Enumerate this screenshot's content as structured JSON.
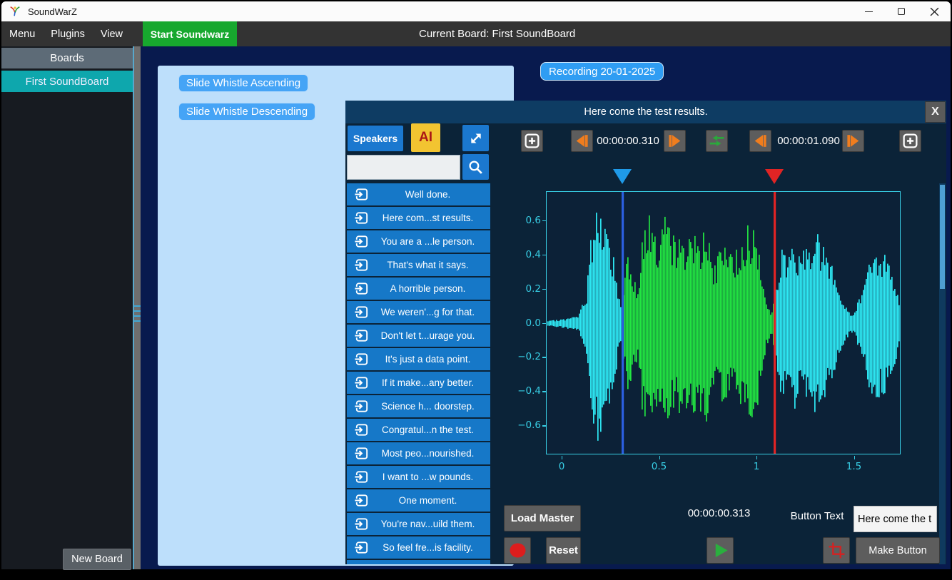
{
  "window": {
    "title": "SoundWarZ"
  },
  "menu_bar": {
    "items": [
      "Menu",
      "Plugins",
      "View"
    ],
    "start_button_label": "Start Soundwarz",
    "current_board_label": "Current Board: First SoundBoard"
  },
  "sidebar": {
    "header": "Boards",
    "boards": [
      "First SoundBoard"
    ],
    "new_board_label": "New Board"
  },
  "board_panel": {
    "buttons": [
      "Slide Whistle Ascending",
      "Slide Whistle Descending"
    ]
  },
  "recording_button_label": "Recording 20-01-2025",
  "dialog": {
    "title": "Here come the test results.",
    "close_label": "X",
    "speakers_label": "Speakers",
    "ai_label": "AI",
    "search_value": "",
    "clips": [
      "Well done.",
      "Here com...st results.",
      "You are a ...le person.",
      "That's what it says.",
      "A horrible person.",
      "We weren'...g for that.",
      "Don't let t...urage you.",
      "It's just a data point.",
      "If it make...any better.",
      "Science h... doorstep.",
      "Congratul...n the test.",
      "Most peo...nourished.",
      "I want to ...w pounds.",
      "One moment.",
      "You're nav...uild them.",
      "So feel fre...is facility."
    ],
    "selection_start_time": "00:00:00.310",
    "selection_end_time": "00:00:01.090",
    "position_time": "00:00:00.313",
    "load_master_label": "Load Master",
    "reset_label": "Reset",
    "button_text_label": "Button Text",
    "button_text_value": "Here come the t",
    "make_button_label": "Make Button"
  },
  "colors": {
    "accent_blue": "#1678c8",
    "start_green": "#17a82e",
    "board_teal": "#0ea7ad",
    "ai_amber": "#f2c431",
    "skip_orange": "#f07d1e",
    "main_navy": "#081a4e",
    "dialog_bg": "#0b2338",
    "dialog_header_bg": "#0e3c63",
    "panel_light_blue": "#bddffb",
    "record_red": "#dd1d1d",
    "play_green": "#2aaf3e"
  },
  "chart_data": {
    "type": "area",
    "title": "",
    "xlabel": "",
    "ylabel": "",
    "xlim": [
      -0.0806,
      1.7399
    ],
    "ylim": [
      -0.77,
      0.77
    ],
    "xticks": [
      0,
      0.5,
      1,
      1.5
    ],
    "xtick_labels": [
      "0",
      "0.5",
      "1",
      "1.5"
    ],
    "yticks": [
      0.6,
      0.4,
      0.2,
      0,
      -0.2,
      -0.4,
      -0.6
    ],
    "ytick_labels": [
      "0.6",
      "0.4",
      "0.2",
      "0.0",
      "−0.2",
      "−0.4",
      "−0.6"
    ],
    "grid": false,
    "axis_color": "#38cfe6",
    "waveform_colors": {
      "outside_selection": "#2ee9f4",
      "inside_selection": "#22e542"
    },
    "markers": {
      "selection_start": {
        "time": 0.31,
        "triangle_color": "#1f9ae8",
        "line_color": "#2c5fe0"
      },
      "selection_end": {
        "time": 1.09,
        "triangle_color": "#e02424",
        "line_color": "#e02424"
      }
    },
    "envelope": [
      [
        -0.08,
        0.015
      ],
      [
        0.02,
        0.03
      ],
      [
        0.08,
        0.05
      ],
      [
        0.12,
        0.18
      ],
      [
        0.14,
        0.5
      ],
      [
        0.17,
        0.72
      ],
      [
        0.2,
        0.62
      ],
      [
        0.23,
        0.52
      ],
      [
        0.26,
        0.42
      ],
      [
        0.285,
        0.18
      ],
      [
        0.3,
        0.09
      ],
      [
        0.315,
        0.25
      ],
      [
        0.33,
        0.48
      ],
      [
        0.36,
        0.3
      ],
      [
        0.385,
        0.22
      ],
      [
        0.41,
        0.55
      ],
      [
        0.43,
        0.68
      ],
      [
        0.46,
        0.58
      ],
      [
        0.49,
        0.52
      ],
      [
        0.52,
        0.62
      ],
      [
        0.55,
        0.56
      ],
      [
        0.58,
        0.5
      ],
      [
        0.61,
        0.57
      ],
      [
        0.64,
        0.48
      ],
      [
        0.67,
        0.58
      ],
      [
        0.7,
        0.5
      ],
      [
        0.73,
        0.62
      ],
      [
        0.755,
        0.45
      ],
      [
        0.78,
        0.32
      ],
      [
        0.8,
        0.42
      ],
      [
        0.83,
        0.55
      ],
      [
        0.86,
        0.38
      ],
      [
        0.89,
        0.44
      ],
      [
        0.92,
        0.52
      ],
      [
        0.95,
        0.6
      ],
      [
        0.98,
        0.55
      ],
      [
        1.0,
        0.48
      ],
      [
        1.02,
        0.3
      ],
      [
        1.045,
        0.14
      ],
      [
        1.07,
        0.06
      ],
      [
        1.1,
        0.3
      ],
      [
        1.13,
        0.48
      ],
      [
        1.16,
        0.4
      ],
      [
        1.19,
        0.5
      ],
      [
        1.22,
        0.42
      ],
      [
        1.26,
        0.52
      ],
      [
        1.3,
        0.55
      ],
      [
        1.34,
        0.48
      ],
      [
        1.38,
        0.35
      ],
      [
        1.42,
        0.22
      ],
      [
        1.45,
        0.1
      ],
      [
        1.49,
        0.05
      ],
      [
        1.53,
        0.2
      ],
      [
        1.57,
        0.4
      ],
      [
        1.61,
        0.46
      ],
      [
        1.65,
        0.42
      ],
      [
        1.69,
        0.32
      ],
      [
        1.72,
        0.18
      ],
      [
        1.74,
        0.06
      ]
    ]
  }
}
